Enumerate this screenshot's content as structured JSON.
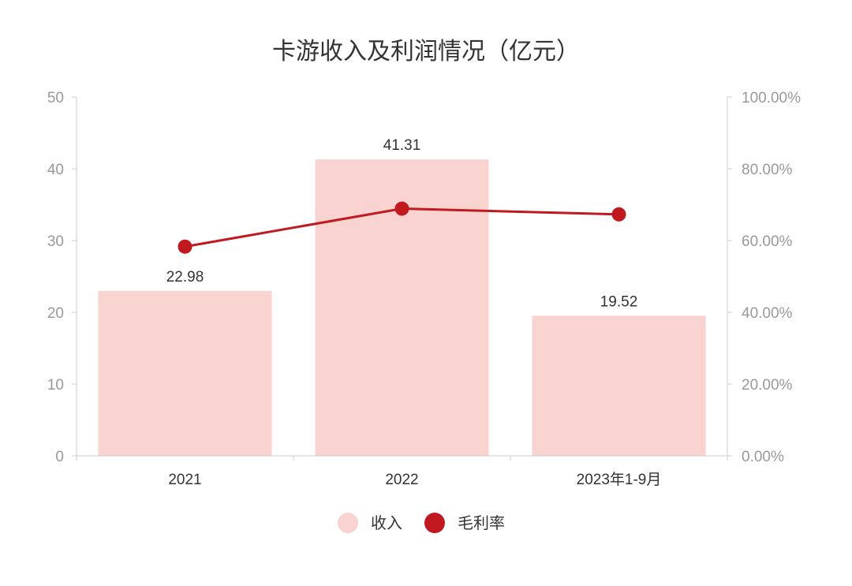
{
  "chart_data": {
    "type": "bar",
    "title": "卡游收入及利润情况（亿元）",
    "categories": [
      "2021",
      "2022",
      "2023年1-9月"
    ],
    "series": [
      {
        "name": "收入",
        "type": "bar",
        "axis": "left",
        "values": [
          22.98,
          41.31,
          19.52
        ],
        "color": "#F9D3CF"
      },
      {
        "name": "毛利率",
        "type": "line",
        "axis": "right",
        "values": [
          58.3,
          68.9,
          67.3
        ],
        "color": "#C0191F"
      }
    ],
    "y_left": {
      "min": 0,
      "max": 50,
      "ticks": [
        "0",
        "10",
        "20",
        "30",
        "40",
        "50"
      ]
    },
    "y_right": {
      "min": 0,
      "max": 100,
      "ticks": [
        "0.00%",
        "20.00%",
        "40.00%",
        "60.00%",
        "80.00%",
        "100.00%"
      ]
    },
    "data_labels": [
      "22.98",
      "41.31",
      "19.52"
    ],
    "legend": {
      "position": "bottom",
      "items": [
        "收入",
        "毛利率"
      ]
    },
    "grid": false
  }
}
